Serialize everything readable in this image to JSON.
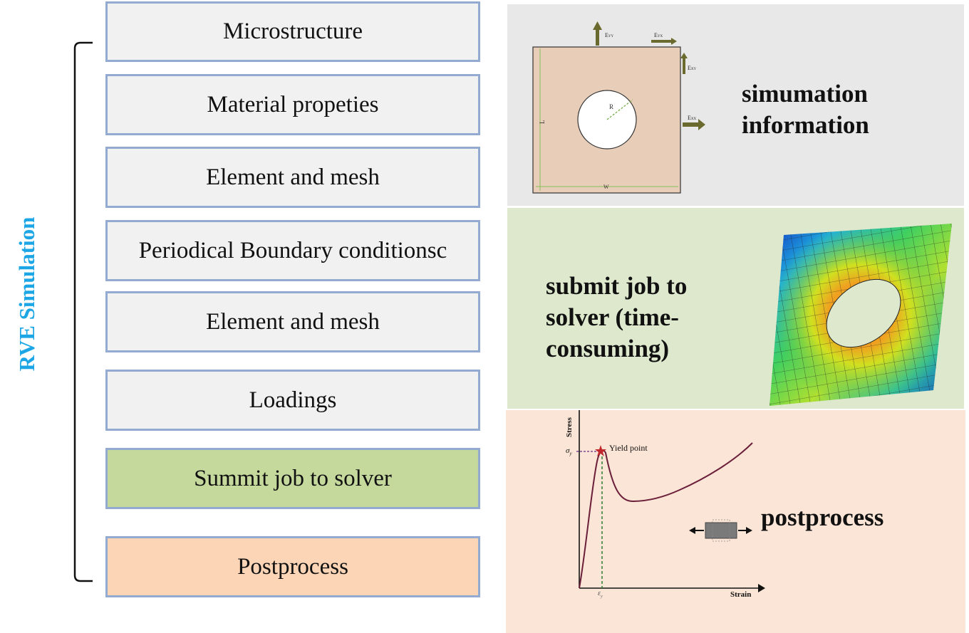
{
  "title": "RVE Simulation",
  "steps": [
    {
      "label": "Microstructure",
      "color": "#f1f1f1"
    },
    {
      "label": "Material propeties",
      "color": "#f1f1f1"
    },
    {
      "label": "Element and mesh",
      "color": "#f1f1f1"
    },
    {
      "label": "Periodical Boundary conditionsc",
      "color": "#f1f1f1"
    },
    {
      "label": "Element and mesh",
      "color": "#f1f1f1"
    },
    {
      "label": "Loadings",
      "color": "#f1f1f1"
    },
    {
      "label": "Summit job to solver",
      "color": "#c5d99c"
    },
    {
      "label": "Postprocess",
      "color": "#fcd4b6"
    }
  ],
  "panels": {
    "info": {
      "line1": "simumation",
      "line2": "information",
      "labels": {
        "eyy": "E",
        "eyy_sub": "YY",
        "eyx": "E",
        "eyx_sub": "YX",
        "exy": "E",
        "exy_sub": "XY",
        "exx": "E",
        "exx_sub": "XX",
        "r": "R",
        "l": "L",
        "w": "W"
      }
    },
    "solver": {
      "line1": "submit job to",
      "line2": "solver (time-",
      "line3": "consuming)"
    },
    "post": {
      "label": "postprocess",
      "chart": {
        "ylabel": "Stress",
        "xlabel": "Strain",
        "yield_label": "Yield point",
        "sigma_label": "σ",
        "sigma_sub": "y",
        "eps_label": "ε",
        "eps_sub": "y"
      }
    }
  },
  "colors": {
    "title": "#1ca6e6",
    "border": "#93abd0",
    "arrow": "#6b6a2e",
    "plate": "#e8cdb8",
    "curve": "#6b1f3a"
  }
}
